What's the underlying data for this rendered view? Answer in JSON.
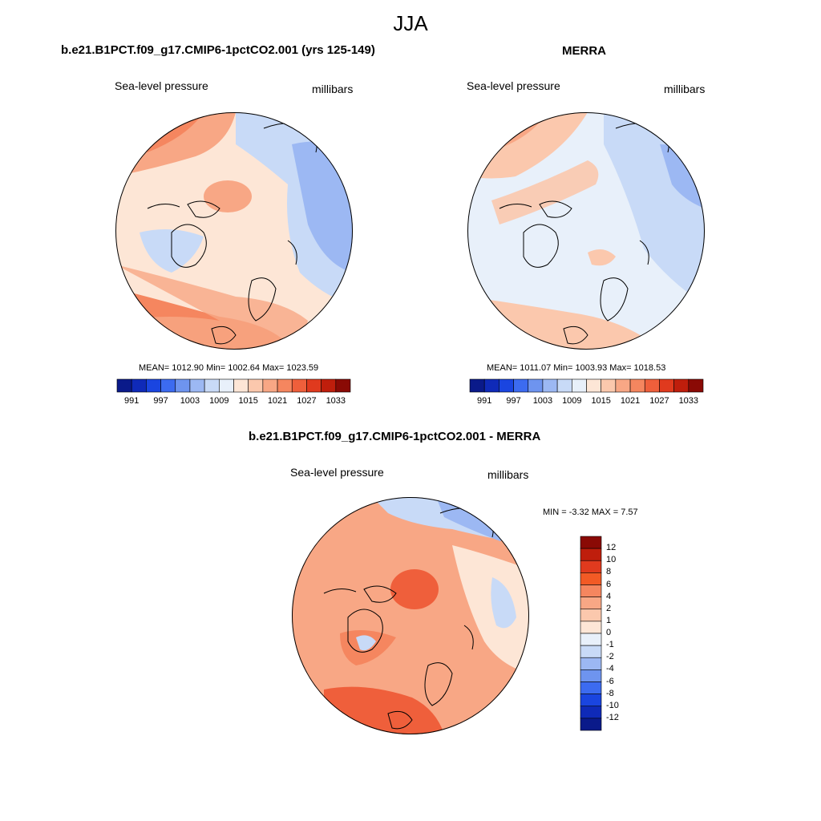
{
  "page": {
    "title": "JJA"
  },
  "panel_model": {
    "title": "b.e21.B1PCT.f09_g17.CMIP6-1pctCO2.001 (yrs 125-149)",
    "variable": "Sea-level pressure",
    "units": "millibars",
    "stats": "MEAN= 1012.90  Min= 1002.64  Max= 1023.59"
  },
  "panel_obs": {
    "title": "MERRA",
    "variable": "Sea-level pressure",
    "units": "millibars",
    "stats": "MEAN= 1011.07  Min= 1003.93  Max= 1018.53"
  },
  "panel_diff": {
    "title": "b.e21.B1PCT.f09_g17.CMIP6-1pctCO2.001 - MERRA",
    "variable": "Sea-level pressure",
    "units": "millibars",
    "stats": "MIN =  -3.32 MAX =   7.57"
  },
  "colorbar_abs": {
    "colors": [
      "#0a1a8a",
      "#0f2ab8",
      "#1a45e0",
      "#3c6bf0",
      "#6e94ef",
      "#9cb8f3",
      "#c8daf7",
      "#e8f0fa",
      "#fde6d6",
      "#fbc8ad",
      "#f8a785",
      "#f5865f",
      "#ef5f3b",
      "#e03a1e",
      "#bf1e0c",
      "#8a0a05"
    ],
    "tick_labels": [
      "991",
      "997",
      "1003",
      "1009",
      "1015",
      "1021",
      "1027",
      "1033"
    ]
  },
  "colorbar_diff": {
    "colors": [
      "#8a0a05",
      "#bf1e0c",
      "#e03a1e",
      "#f25a25",
      "#f5865f",
      "#f8a785",
      "#fbc8ad",
      "#fde6d6",
      "#e8f0fa",
      "#c8daf7",
      "#9cb8f3",
      "#6e94ef",
      "#3c6bf0",
      "#1a45e0",
      "#0f2ab8",
      "#0a1a8a"
    ],
    "tick_labels": [
      "12",
      "10",
      "8",
      "6",
      "4",
      "2",
      "1",
      "0",
      "-1",
      "-2",
      "-4",
      "-6",
      "-8",
      "-10",
      "-12"
    ]
  },
  "maps": {
    "model": {
      "base": "#fde6d6",
      "accent_warm": "#f8a785",
      "accent_hot": "#f5865f",
      "accent_cool": "#c8daf7",
      "accent_cold": "#9cb8f3"
    },
    "obs": {
      "base": "#e8f0fa",
      "accent_warm": "#fbc8ad",
      "accent_hot": "#f8a785",
      "accent_cool": "#c8daf7",
      "accent_cold": "#9cb8f3"
    },
    "diff": {
      "base": "#f8a785",
      "accent_warm": "#f5865f",
      "accent_hot": "#ef5f3b",
      "accent_cool": "#c8daf7",
      "accent_cold": "#9cb8f3"
    }
  }
}
